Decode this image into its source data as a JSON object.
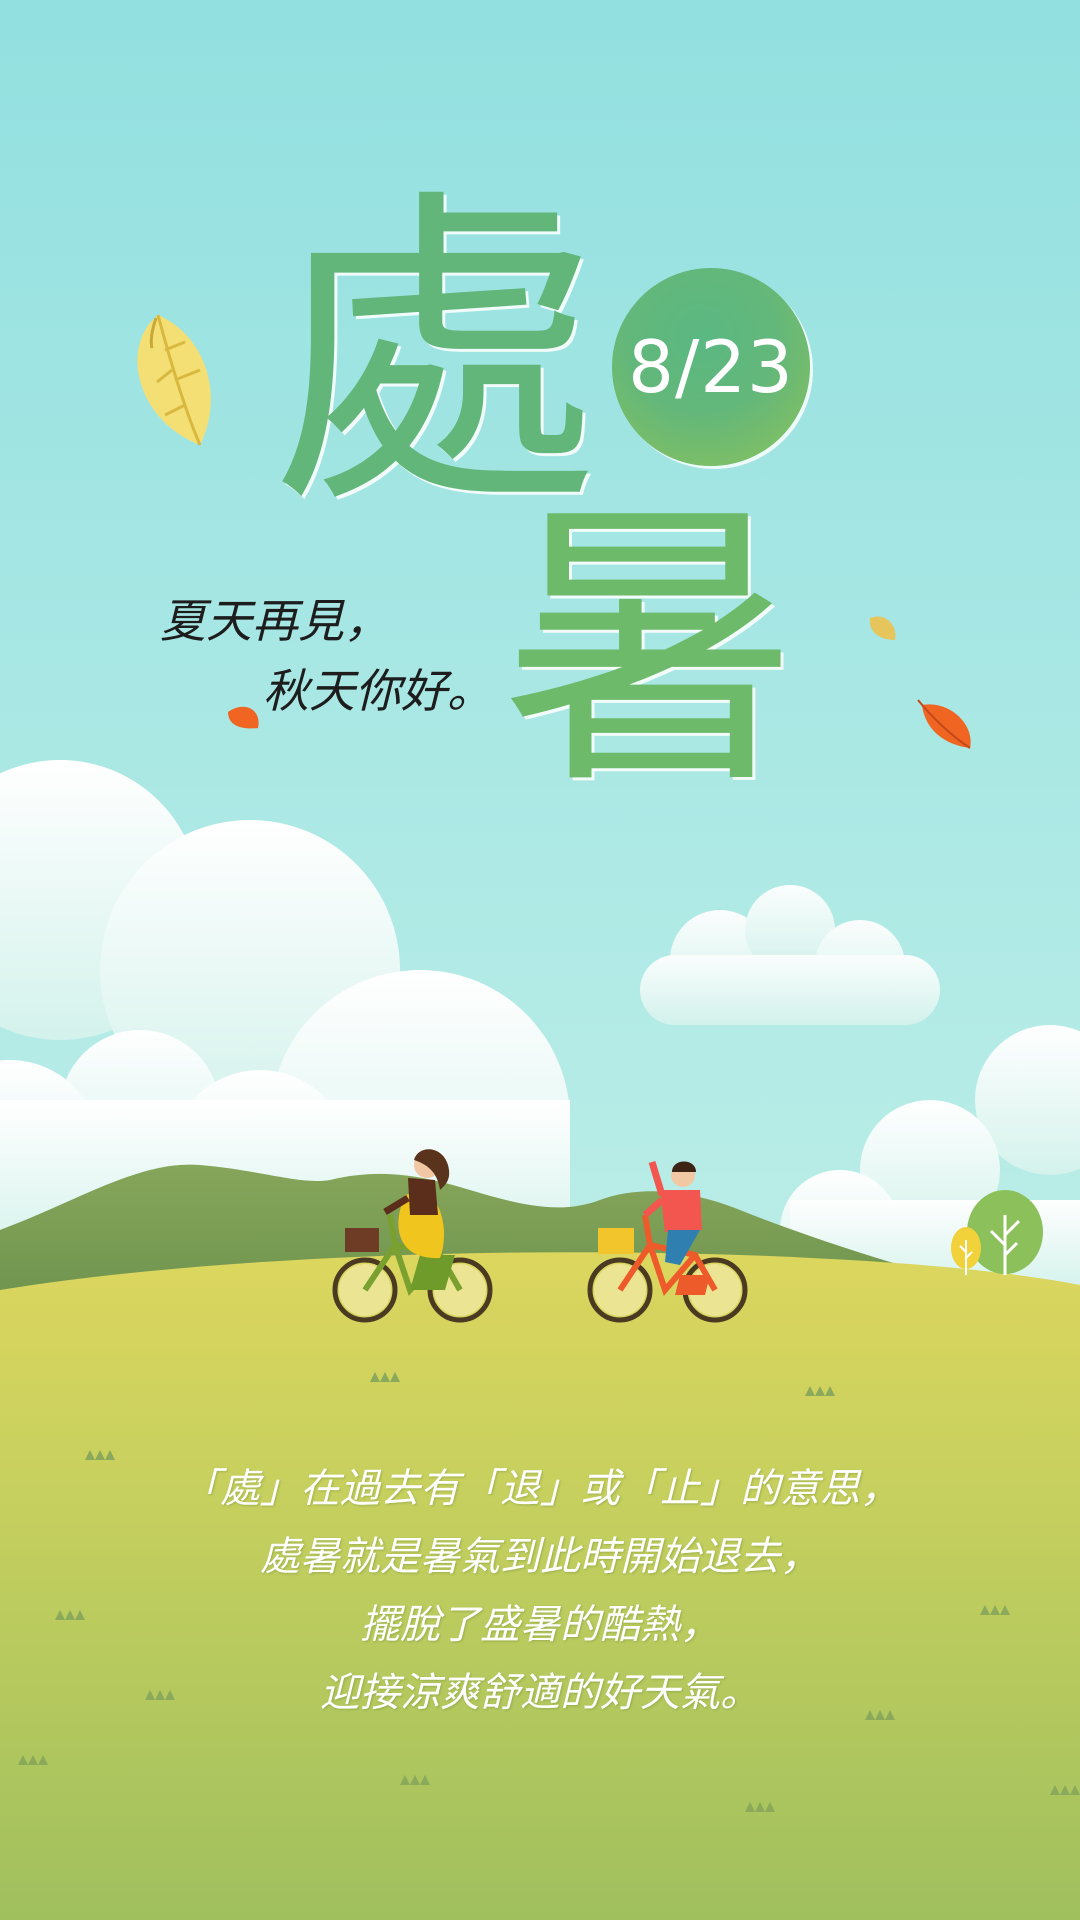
{
  "title": {
    "char1": "處",
    "char2": "暑"
  },
  "date": "8/23",
  "greeting": {
    "line1": "夏天再見，",
    "line2": "秋天你好。"
  },
  "body": {
    "lines": [
      "「處」在過去有「退」或「止」的意思，",
      "處暑就是暑氣到此時開始退去，",
      "擺脫了盛暑的酷熱，",
      "迎接涼爽舒適的好天氣。"
    ]
  },
  "colors": {
    "sky_top": "#92e0e0",
    "sky_bottom": "#c2eee4",
    "title_green": "#62b679",
    "field_top": "#d8d561",
    "field_bottom": "#a4c25e",
    "hill": "#7f9f55",
    "text_white": "#ffffff"
  },
  "icons": [
    "falling-leaf-icon",
    "cloud-icon",
    "bicycle-icon",
    "tree-icon",
    "grass-tuft-icon"
  ]
}
